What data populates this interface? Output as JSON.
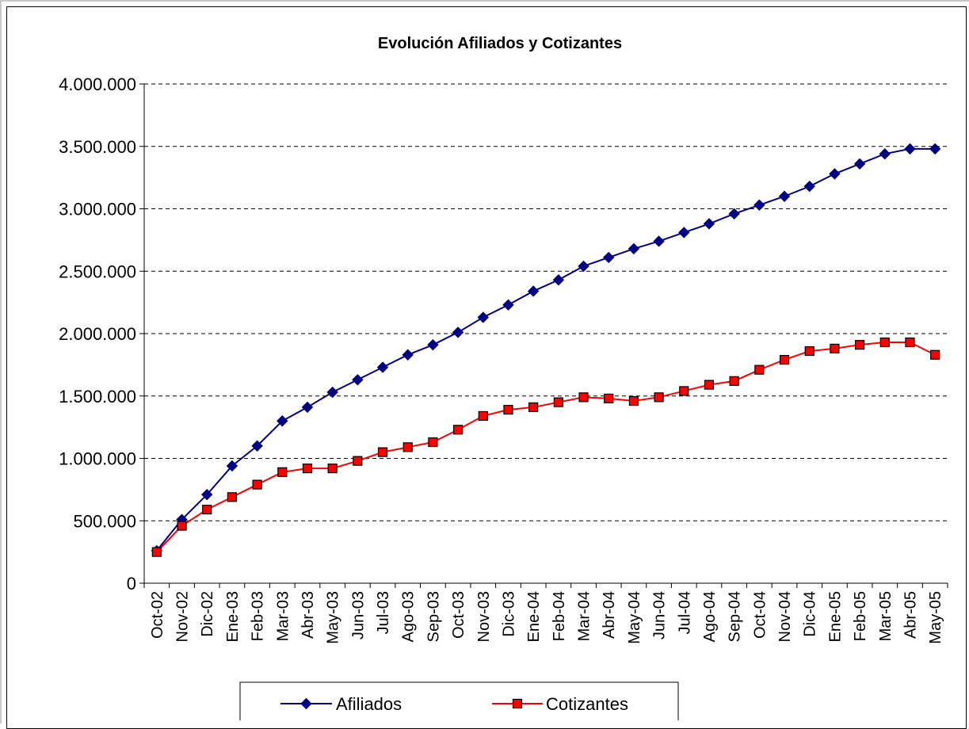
{
  "chart_data": {
    "type": "line",
    "title": "Evolución Afiliados y Cotizantes",
    "xlabel": "",
    "ylabel": "",
    "ylim": [
      0,
      4000000
    ],
    "yticks": [
      0,
      500000,
      1000000,
      1500000,
      2000000,
      2500000,
      3000000,
      3500000,
      4000000
    ],
    "ytick_labels": [
      "0",
      "500.000",
      "1.000.000",
      "1.500.000",
      "2.000.000",
      "2.500.000",
      "3.000.000",
      "3.500.000",
      "4.000.000"
    ],
    "grid": "horizontal dashed",
    "legend_position": "bottom-center",
    "categories": [
      "Oct-02",
      "Nov-02",
      "Dic-02",
      "Ene-03",
      "Feb-03",
      "Mar-03",
      "Abr-03",
      "May-03",
      "Jun-03",
      "Jul-03",
      "Ago-03",
      "Sep-03",
      "Oct-03",
      "Nov-03",
      "Dic-03",
      "Ene-04",
      "Feb-04",
      "Mar-04",
      "Abr-04",
      "May-04",
      "Jun-04",
      "Jul-04",
      "Ago-04",
      "Sep-04",
      "Oct-04",
      "Nov-04",
      "Dic-04",
      "Ene-05",
      "Feb-05",
      "Mar-05",
      "Abr-05",
      "May-05"
    ],
    "series": [
      {
        "name": "Afiliados",
        "color": "#000080",
        "marker": "diamond",
        "values": [
          260000,
          510000,
          710000,
          940000,
          1100000,
          1300000,
          1410000,
          1530000,
          1630000,
          1730000,
          1830000,
          1910000,
          2010000,
          2130000,
          2230000,
          2340000,
          2430000,
          2540000,
          2610000,
          2680000,
          2740000,
          2810000,
          2880000,
          2960000,
          3030000,
          3100000,
          3180000,
          3280000,
          3360000,
          3440000,
          3480000,
          3480000
        ]
      },
      {
        "name": "Cotizantes",
        "color": "#ff0000",
        "marker": "square",
        "marker_fill": "#ff0000",
        "values": [
          250000,
          460000,
          590000,
          690000,
          790000,
          890000,
          920000,
          920000,
          980000,
          1050000,
          1090000,
          1130000,
          1230000,
          1340000,
          1390000,
          1410000,
          1450000,
          1490000,
          1480000,
          1460000,
          1490000,
          1540000,
          1590000,
          1620000,
          1710000,
          1790000,
          1860000,
          1880000,
          1910000,
          1930000,
          1930000,
          1830000
        ]
      }
    ]
  }
}
